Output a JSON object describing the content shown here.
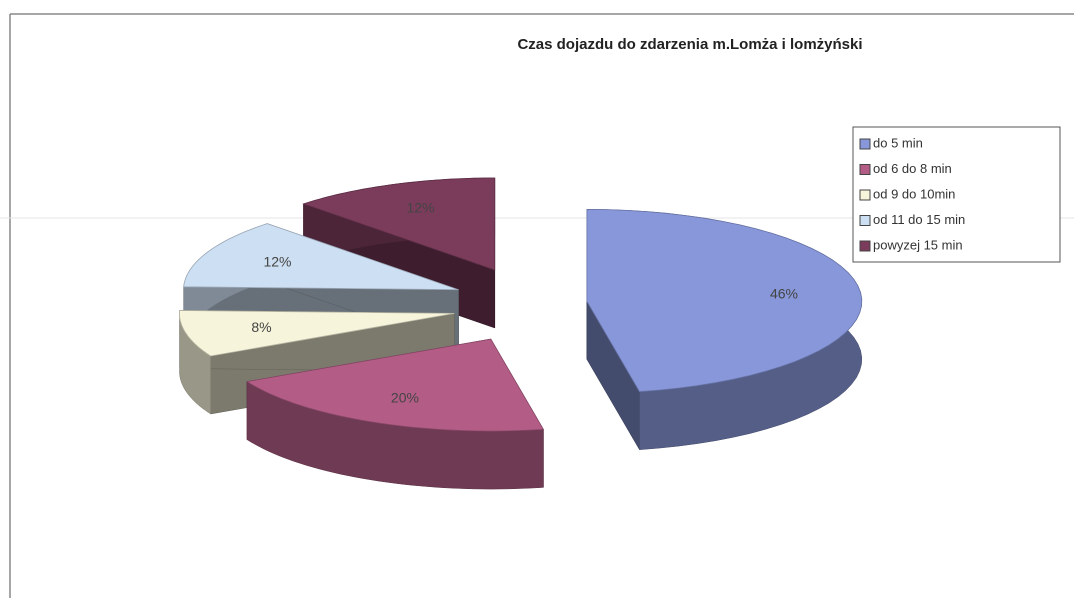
{
  "chart_data": {
    "type": "pie3d",
    "title": "Czas dojazdu do zdarzenia  m.Lomża i lomżyński",
    "categories": [
      "do 5 min",
      "od 6 do 8 min",
      "od 9 do 10min",
      "od 11 do 15 min",
      "powyzej 15 min"
    ],
    "values": [
      46,
      20,
      8,
      12,
      12
    ],
    "value_labels": [
      "46%",
      "20%",
      "8%",
      "12%",
      "12%"
    ],
    "colors": [
      "#8797d9",
      "#b35d86",
      "#f6f4da",
      "#cddff2",
      "#7b3c5c"
    ],
    "legend": "top-right"
  }
}
